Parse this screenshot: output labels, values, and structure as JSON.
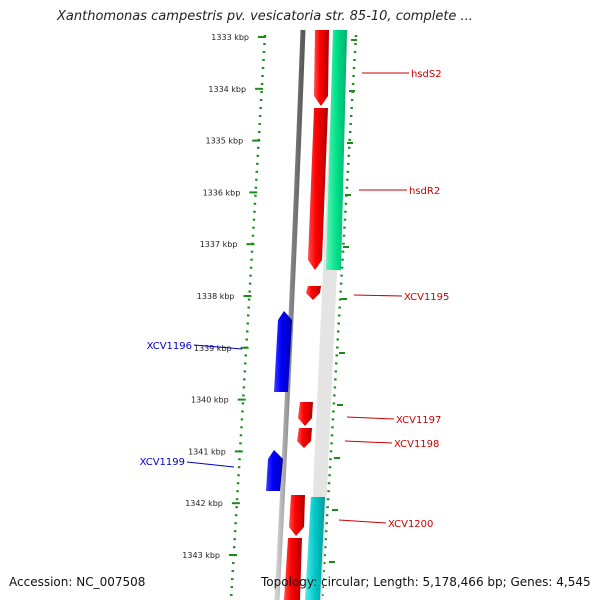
{
  "title": "Xanthomonas campestris pv. vesicatoria str. 85-10, complete ...",
  "footer": {
    "accession": "Accession: NC_007508",
    "summary": "Topology: circular; Length: 5,178,466 bp; Genes: 4,545"
  },
  "ticks": [
    "1333 kbp",
    "1334 kbp",
    "1335 kbp",
    "1336 kbp",
    "1337 kbp",
    "1338 kbp",
    "1339 kbp",
    "1340 kbp",
    "1341 kbp",
    "1342 kbp",
    "1343 kbp"
  ],
  "genes_forward": [
    "hsdS2",
    "hsdR2",
    "XCV1195",
    "XCV1197",
    "XCV1198",
    "XCV1200"
  ],
  "genes_reverse": [
    "XCV1196",
    "XCV1199"
  ],
  "colors": {
    "forward_cds": "#ff0000",
    "reverse_cds": "#0000ff",
    "forward_label": "#cc0000",
    "reverse_label": "#0000cc",
    "tick_dots": "#1a8a1a",
    "feature_green": "#00e08a",
    "feature_cyan": "#00c8c8",
    "backbone": "#808080"
  }
}
